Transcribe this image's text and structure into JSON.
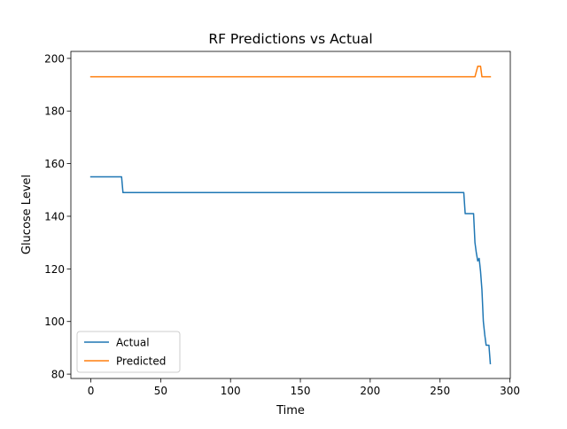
{
  "chart_data": {
    "type": "line",
    "title": "RF Predictions vs Actual",
    "xlabel": "Time",
    "ylabel": "Glucose Level",
    "xlim": [
      -14.3,
      300.3
    ],
    "ylim": [
      78.35,
      202.65
    ],
    "xticks": [
      0,
      50,
      100,
      150,
      200,
      250,
      300
    ],
    "yticks": [
      80,
      100,
      120,
      140,
      160,
      180,
      200
    ],
    "grid": false,
    "legend_position": "lower-left",
    "series": [
      {
        "name": "Actual",
        "color": "#1f77b4",
        "points": [
          [
            0,
            155
          ],
          [
            22,
            155
          ],
          [
            23,
            149
          ],
          [
            267,
            149
          ],
          [
            268,
            141
          ],
          [
            274,
            141
          ],
          [
            275,
            130
          ],
          [
            276,
            126
          ],
          [
            277,
            123
          ],
          [
            278,
            124
          ],
          [
            279,
            119
          ],
          [
            280,
            112
          ],
          [
            281,
            100
          ],
          [
            282,
            95
          ],
          [
            283,
            91
          ],
          [
            285,
            91
          ],
          [
            286,
            84
          ]
        ]
      },
      {
        "name": "Predicted",
        "color": "#ff7f0e",
        "points": [
          [
            0,
            193
          ],
          [
            275,
            193
          ],
          [
            277,
            197
          ],
          [
            279,
            197
          ],
          [
            280,
            193
          ],
          [
            286,
            193
          ]
        ]
      }
    ]
  }
}
